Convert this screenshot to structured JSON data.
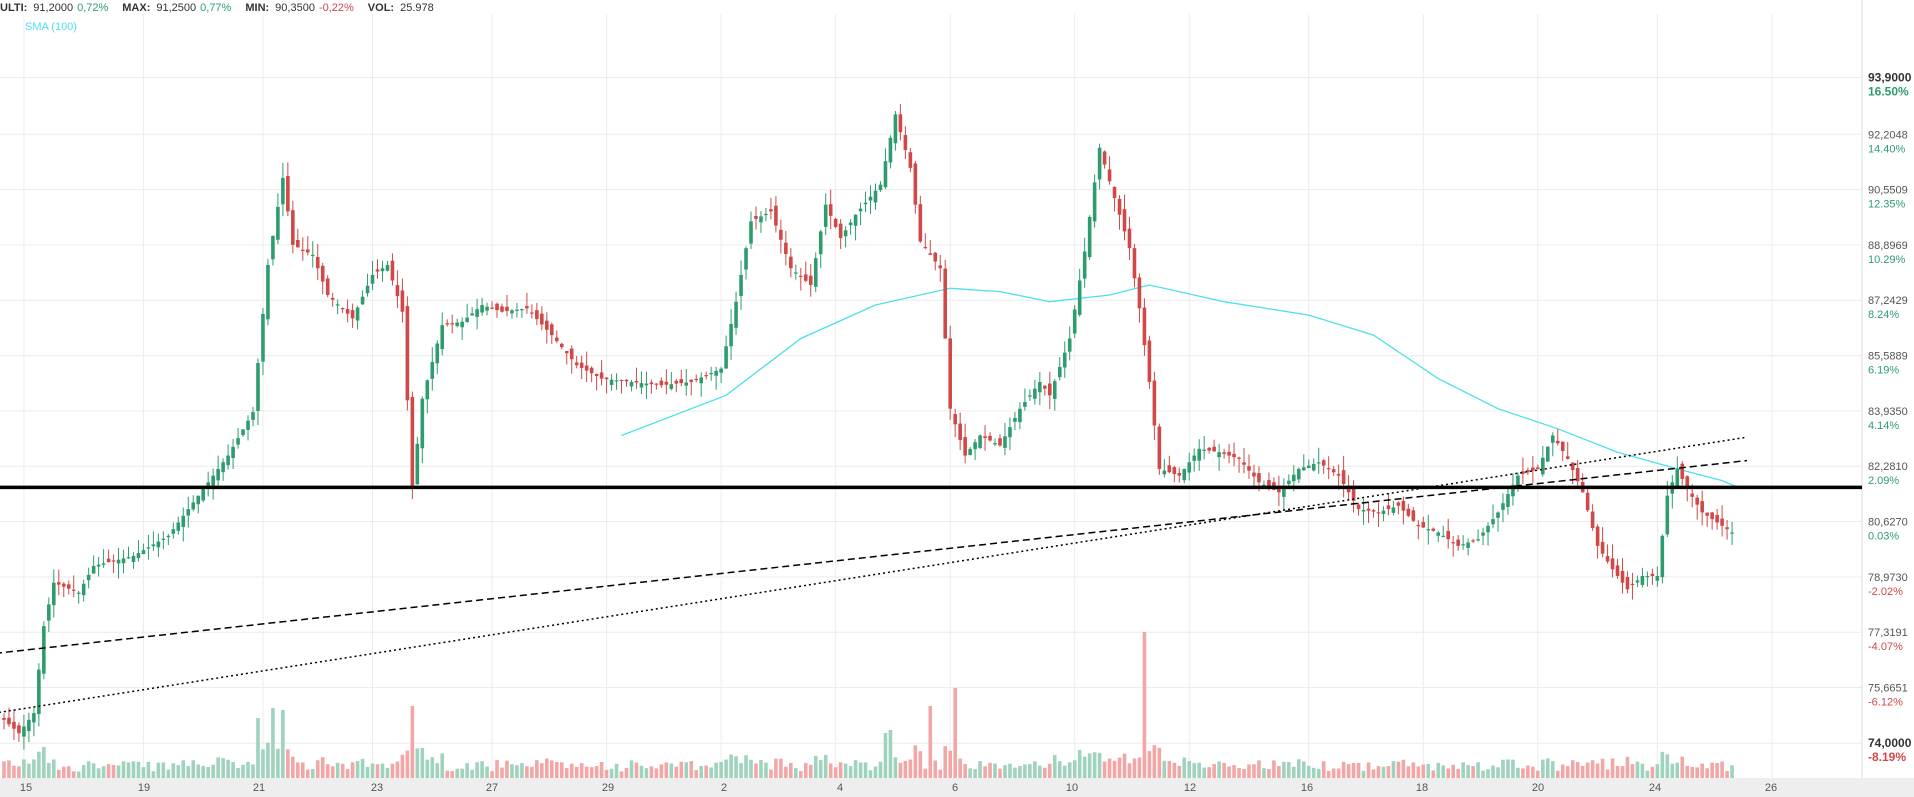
{
  "header": {
    "ulti_label": "ULTI:",
    "ulti_value": "91,2000",
    "ulti_pct": "0,72%",
    "max_label": "MAX:",
    "max_value": "91,2500",
    "max_pct": "0,77%",
    "min_label": "MIN:",
    "min_value": "90,3500",
    "min_pct": "-0,22%",
    "vol_label": "VOL:",
    "vol_value": "25.978"
  },
  "colors": {
    "up": "#2e9c6e",
    "down": "#d04848",
    "vol_up": "#9fd3bd",
    "vol_down": "#f3a6a6",
    "sma": "#4de0ea",
    "grid": "#ececec",
    "axis_text": "#555555",
    "pct_up": "#2e9c6e",
    "pct_down": "#d04848"
  },
  "chart_data": {
    "type": "candlestick",
    "legend": [
      "SMA (100)"
    ],
    "x_ticks": [
      "15",
      "19",
      "21",
      "23",
      "27",
      "29",
      "2",
      "4",
      "6",
      "10",
      "12",
      "16",
      "18",
      "20",
      "24",
      "26"
    ],
    "y_ticks": [
      {
        "value": 93.9,
        "label": "93,9000",
        "pct": "16.50%",
        "bold": true
      },
      {
        "value": 92.2048,
        "label": "92,2048",
        "pct": "14.40%"
      },
      {
        "value": 90.5509,
        "label": "90,5509",
        "pct": "12.35%"
      },
      {
        "value": 88.8969,
        "label": "88,8969",
        "pct": "10.29%"
      },
      {
        "value": 87.2429,
        "label": "87,2429",
        "pct": "8.24%"
      },
      {
        "value": 85.5889,
        "label": "85,5889",
        "pct": "6.19%"
      },
      {
        "value": 83.935,
        "label": "83,9350",
        "pct": "4.14%"
      },
      {
        "value": 82.281,
        "label": "82,2810",
        "pct": "2.09%"
      },
      {
        "value": 80.627,
        "label": "80,6270",
        "pct": "0.03%"
      },
      {
        "value": 78.973,
        "label": "78,9730",
        "pct": "-2.02%"
      },
      {
        "value": 77.3191,
        "label": "77,3191",
        "pct": "-4.07%"
      },
      {
        "value": 75.6651,
        "label": "75,6651",
        "pct": "-6.12%"
      },
      {
        "value": 74.0,
        "label": "74,0000",
        "pct": "-8.19%",
        "bold": true
      }
    ],
    "y_range": [
      73.2,
      95.8
    ],
    "horizontal_level": 81.65,
    "trendlines": [
      {
        "style": "dashed",
        "start": {
          "candle": -4,
          "price": 76.65
        },
        "end": {
          "candle": 350,
          "price": 82.45
        }
      },
      {
        "style": "dotted",
        "start": {
          "candle": -4,
          "price": 74.85
        },
        "end": {
          "candle": 350,
          "price": 83.15
        }
      }
    ],
    "anchors": [
      [
        0,
        74.7
      ],
      [
        3,
        74.3
      ],
      [
        6,
        74.9
      ],
      [
        8,
        77.5
      ],
      [
        10,
        78.8
      ],
      [
        15,
        78.5
      ],
      [
        18,
        79.3
      ],
      [
        26,
        79.6
      ],
      [
        33,
        80.2
      ],
      [
        40,
        81.6
      ],
      [
        45,
        82.6
      ],
      [
        50,
        83.9
      ],
      [
        53,
        88.3
      ],
      [
        56,
        90.9
      ],
      [
        58,
        88.9
      ],
      [
        62,
        88.6
      ],
      [
        65,
        87.4
      ],
      [
        70,
        86.7
      ],
      [
        74,
        88.0
      ],
      [
        77,
        88.3
      ],
      [
        80,
        86.9
      ],
      [
        82,
        81.6
      ],
      [
        84,
        84.3
      ],
      [
        88,
        86.5
      ],
      [
        92,
        86.6
      ],
      [
        96,
        87.1
      ],
      [
        100,
        86.9
      ],
      [
        105,
        87.0
      ],
      [
        110,
        86.2
      ],
      [
        115,
        85.3
      ],
      [
        120,
        84.9
      ],
      [
        126,
        84.8
      ],
      [
        132,
        84.7
      ],
      [
        138,
        84.8
      ],
      [
        144,
        85.2
      ],
      [
        147,
        87.2
      ],
      [
        150,
        89.6
      ],
      [
        154,
        89.9
      ],
      [
        158,
        88.2
      ],
      [
        162,
        87.7
      ],
      [
        165,
        90.1
      ],
      [
        168,
        89.1
      ],
      [
        171,
        89.8
      ],
      [
        176,
        90.7
      ],
      [
        179,
        92.8
      ],
      [
        182,
        91.2
      ],
      [
        184,
        89.0
      ],
      [
        188,
        88.2
      ],
      [
        190,
        84.0
      ],
      [
        193,
        82.6
      ],
      [
        196,
        83.2
      ],
      [
        200,
        82.9
      ],
      [
        204,
        84.0
      ],
      [
        208,
        84.8
      ],
      [
        210,
        84.4
      ],
      [
        214,
        86.1
      ],
      [
        217,
        88.7
      ],
      [
        220,
        91.8
      ],
      [
        223,
        90.3
      ],
      [
        226,
        88.8
      ],
      [
        228,
        87.0
      ],
      [
        230,
        84.8
      ],
      [
        232,
        82.2
      ],
      [
        236,
        82.0
      ],
      [
        240,
        82.8
      ],
      [
        244,
        82.7
      ],
      [
        248,
        82.5
      ],
      [
        252,
        81.8
      ],
      [
        256,
        81.5
      ],
      [
        260,
        82.2
      ],
      [
        264,
        82.4
      ],
      [
        268,
        82.0
      ],
      [
        272,
        81.0
      ],
      [
        276,
        80.9
      ],
      [
        280,
        81.1
      ],
      [
        284,
        80.5
      ],
      [
        288,
        80.3
      ],
      [
        292,
        79.9
      ],
      [
        296,
        80.1
      ],
      [
        300,
        80.9
      ],
      [
        304,
        82.0
      ],
      [
        308,
        82.2
      ],
      [
        311,
        83.2
      ],
      [
        314,
        82.5
      ],
      [
        317,
        81.5
      ],
      [
        320,
        79.9
      ],
      [
        323,
        79.2
      ],
      [
        326,
        78.6
      ],
      [
        329,
        79.0
      ],
      [
        332,
        79.0
      ],
      [
        334,
        81.4
      ],
      [
        336,
        82.2
      ],
      [
        338,
        81.6
      ],
      [
        341,
        80.9
      ],
      [
        344,
        80.6
      ],
      [
        347,
        80.3
      ]
    ],
    "sma_line": {
      "start_candle": 124,
      "points": [
        [
          124,
          83.2
        ],
        [
          145,
          84.4
        ],
        [
          160,
          86.1
        ],
        [
          175,
          87.1
        ],
        [
          190,
          87.6
        ],
        [
          200,
          87.5
        ],
        [
          210,
          87.2
        ],
        [
          222,
          87.4
        ],
        [
          230,
          87.7
        ],
        [
          245,
          87.2
        ],
        [
          262,
          86.8
        ],
        [
          275,
          86.2
        ],
        [
          288,
          84.9
        ],
        [
          300,
          84.0
        ],
        [
          312,
          83.4
        ],
        [
          324,
          82.7
        ],
        [
          336,
          82.2
        ],
        [
          345,
          81.85
        ],
        [
          349,
          81.6
        ]
      ]
    },
    "volume_spikes": [
      [
        51,
        60
      ],
      [
        54,
        70
      ],
      [
        56,
        68
      ],
      [
        82,
        72
      ],
      [
        186,
        72
      ],
      [
        191,
        90
      ],
      [
        229,
        146
      ],
      [
        177,
        45
      ],
      [
        178,
        48
      ]
    ]
  }
}
